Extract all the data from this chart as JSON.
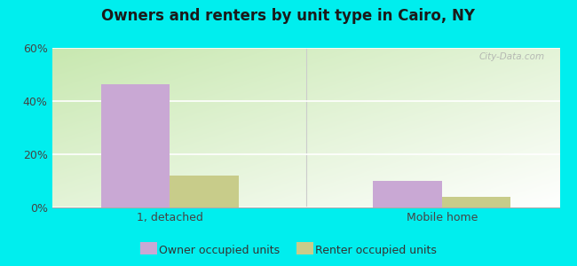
{
  "title": "Owners and renters by unit type in Cairo, NY",
  "categories": [
    "1, detached",
    "Mobile home"
  ],
  "owner_values": [
    46.5,
    10.0
  ],
  "renter_values": [
    12.0,
    4.0
  ],
  "owner_color": "#c9a8d4",
  "renter_color": "#c8cc8a",
  "owner_label": "Owner occupied units",
  "renter_label": "Renter occupied units",
  "ylim": [
    0,
    60
  ],
  "yticks": [
    0,
    20,
    40,
    60
  ],
  "ytick_labels": [
    "0%",
    "20%",
    "40%",
    "60%"
  ],
  "outer_background": "#00eeee",
  "watermark": "City-Data.com",
  "bar_width": 0.38,
  "x_positions": [
    0.5,
    2.0
  ],
  "xlim": [
    -0.15,
    2.65
  ],
  "grad_color_topleft": "#ffffff",
  "grad_color_bottomright": "#c8e8b0"
}
